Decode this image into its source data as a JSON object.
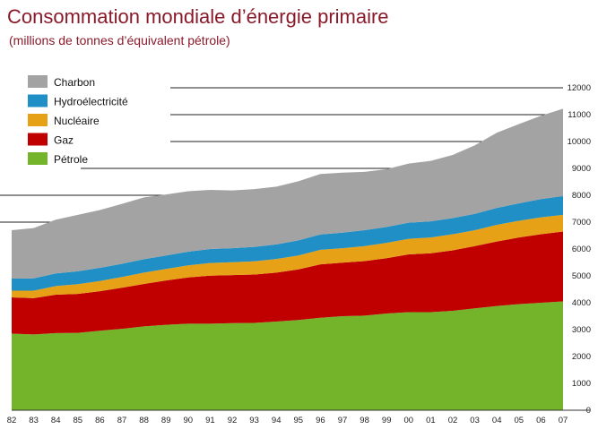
{
  "chart_data": {
    "type": "area",
    "stacked": true,
    "title": "Consommation mondiale d’énergie primaire",
    "subtitle": "(millions de tonnes d’équivalent pétrole)",
    "x": [
      "82",
      "83",
      "84",
      "85",
      "86",
      "87",
      "88",
      "89",
      "90",
      "91",
      "92",
      "93",
      "94",
      "95",
      "96",
      "97",
      "98",
      "99",
      "00",
      "01",
      "02",
      "03",
      "04",
      "05",
      "06",
      "07"
    ],
    "ylim": [
      0,
      12000
    ],
    "yticks": [
      0,
      1000,
      2000,
      3000,
      4000,
      5000,
      6000,
      7000,
      8000,
      9000,
      10000,
      11000,
      12000
    ],
    "y_axis_side": "right",
    "legend_position": "top-left",
    "series": [
      {
        "name": "Pétrole",
        "color": "#74b42a",
        "values": [
          2850,
          2820,
          2870,
          2880,
          2960,
          3030,
          3120,
          3180,
          3220,
          3220,
          3240,
          3250,
          3300,
          3360,
          3440,
          3500,
          3520,
          3600,
          3650,
          3650,
          3700,
          3790,
          3880,
          3950,
          4000,
          4050
        ]
      },
      {
        "name": "Gaz",
        "color": "#c00000",
        "values": [
          1350,
          1350,
          1430,
          1450,
          1470,
          1530,
          1580,
          1650,
          1720,
          1790,
          1790,
          1800,
          1820,
          1880,
          1990,
          1990,
          2030,
          2060,
          2150,
          2190,
          2250,
          2320,
          2400,
          2480,
          2550,
          2600
        ]
      },
      {
        "name": "Nucléaire",
        "color": "#e6a117",
        "values": [
          250,
          280,
          320,
          360,
          380,
          400,
          420,
          430,
          450,
          470,
          480,
          490,
          510,
          520,
          540,
          540,
          560,
          570,
          580,
          590,
          600,
          590,
          620,
          620,
          630,
          620
        ]
      },
      {
        "name": "Hydroélectricité",
        "color": "#1f8fc6",
        "values": [
          450,
          460,
          470,
          480,
          490,
          490,
          500,
          500,
          510,
          520,
          520,
          540,
          540,
          560,
          570,
          580,
          590,
          590,
          600,
          600,
          600,
          610,
          630,
          650,
          680,
          700
        ]
      },
      {
        "name": "Charbon",
        "color": "#a3a3a3",
        "values": [
          1800,
          1870,
          2000,
          2100,
          2150,
          2230,
          2300,
          2270,
          2250,
          2200,
          2150,
          2150,
          2150,
          2200,
          2250,
          2230,
          2170,
          2150,
          2200,
          2250,
          2350,
          2550,
          2800,
          2950,
          3100,
          3250
        ]
      }
    ]
  }
}
